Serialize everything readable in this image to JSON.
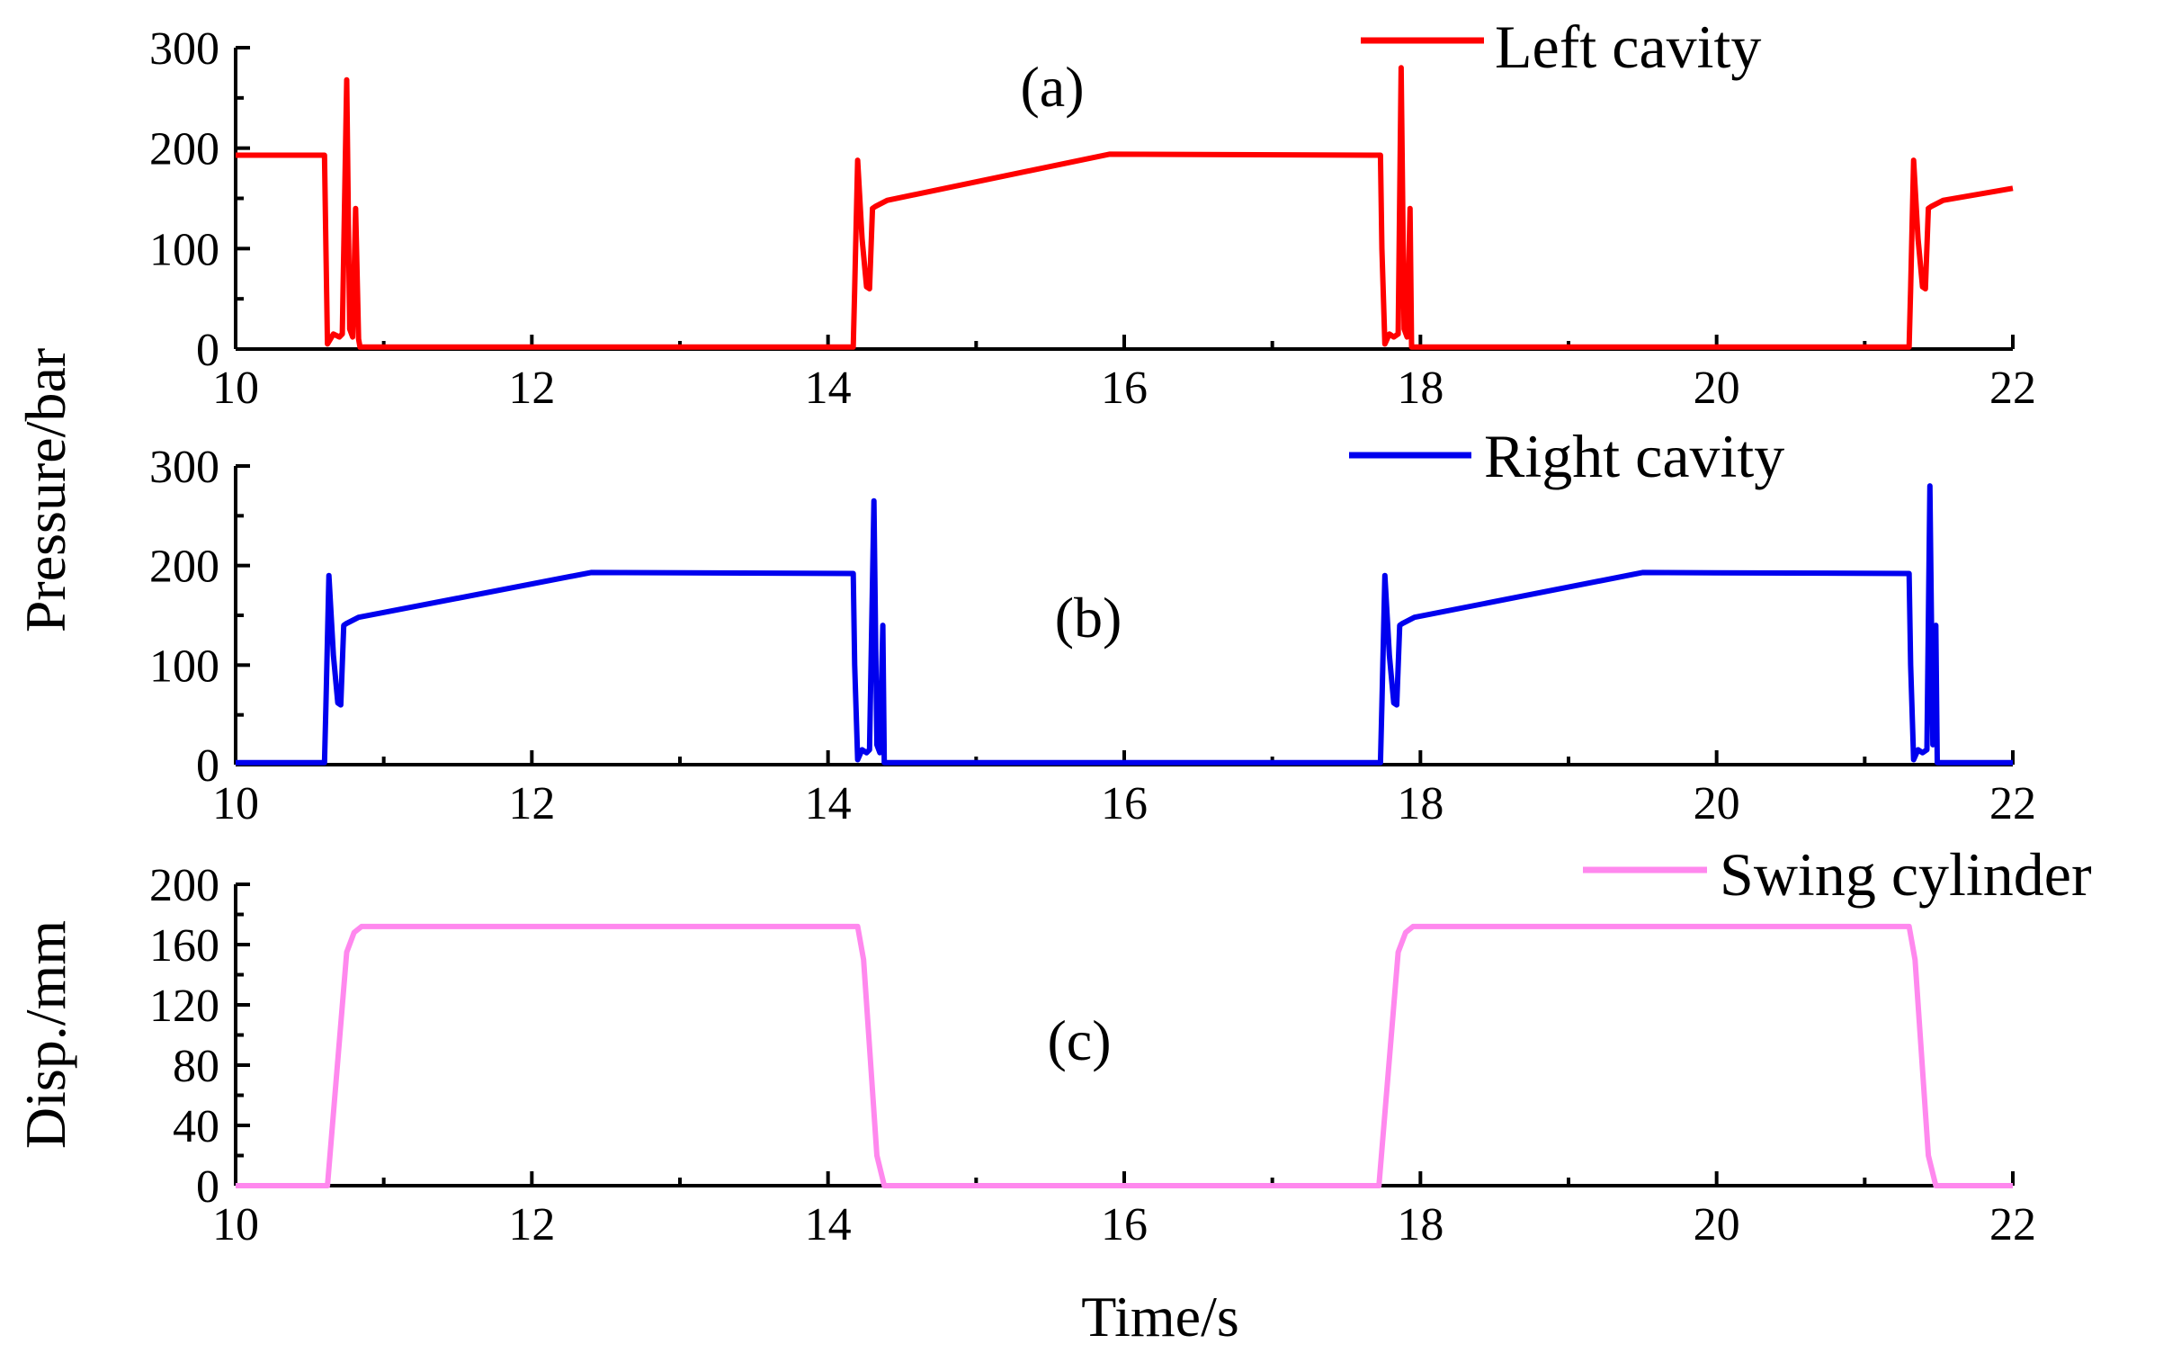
{
  "chart_data": {
    "type": "line",
    "shared_ylabel": "Pressure/bar",
    "xlabel": "Time/s",
    "panels": [
      {
        "id": "a",
        "panel_label": "(a)",
        "legend": "Left cavity",
        "color": "#ff0000",
        "xlim": [
          10,
          22
        ],
        "ylim": [
          0,
          300
        ],
        "xticks": [
          10,
          12,
          14,
          16,
          18,
          20,
          22
        ],
        "xtick_labels": [
          "10",
          "12",
          "14",
          "16",
          "18",
          "20",
          "22"
        ],
        "yticks": [
          0,
          100,
          200,
          300
        ],
        "ytick_labels": [
          "0",
          "100",
          "200",
          "300"
        ],
        "x": [
          10,
          10.6,
          10.61,
          10.62,
          10.66,
          10.7,
          10.72,
          10.75,
          10.77,
          10.79,
          10.81,
          10.83,
          10.84,
          11.5,
          14.17,
          14.18,
          14.2,
          14.23,
          14.26,
          14.28,
          14.3,
          14.32,
          14.4,
          15.9,
          17.73,
          17.74,
          17.76,
          17.79,
          17.82,
          17.85,
          17.87,
          17.89,
          17.91,
          17.93,
          17.94,
          19,
          21.3,
          21.31,
          21.33,
          21.36,
          21.39,
          21.41,
          21.43,
          21.45,
          21.53,
          22
        ],
        "y": [
          193,
          193,
          100,
          5,
          15,
          12,
          15,
          268,
          20,
          12,
          140,
          10,
          2,
          2,
          2,
          60,
          188,
          110,
          62,
          60,
          140,
          142,
          148,
          194,
          193,
          100,
          5,
          15,
          12,
          15,
          280,
          20,
          12,
          140,
          2,
          2,
          2,
          60,
          188,
          110,
          62,
          60,
          140,
          142,
          148,
          160
        ]
      },
      {
        "id": "b",
        "panel_label": "(b)",
        "legend": "Right cavity",
        "color": "#0000ee",
        "xlim": [
          10,
          22
        ],
        "ylim": [
          0,
          300
        ],
        "xticks": [
          10,
          12,
          14,
          16,
          18,
          20,
          22
        ],
        "xtick_labels": [
          "10",
          "12",
          "14",
          "16",
          "18",
          "20",
          "22"
        ],
        "yticks": [
          0,
          100,
          200,
          300
        ],
        "ytick_labels": [
          "0",
          "100",
          "200",
          "300"
        ],
        "x": [
          10,
          10.6,
          10.61,
          10.63,
          10.66,
          10.69,
          10.71,
          10.73,
          10.75,
          10.83,
          12.4,
          14.17,
          14.18,
          14.2,
          14.23,
          14.26,
          14.28,
          14.31,
          14.33,
          14.35,
          14.37,
          14.38,
          17.73,
          17.74,
          17.76,
          17.79,
          17.82,
          17.84,
          17.86,
          17.88,
          17.96,
          19.5,
          21.3,
          21.31,
          21.33,
          21.36,
          21.39,
          21.42,
          21.44,
          21.46,
          21.48,
          21.49,
          22
        ],
        "y": [
          2,
          2,
          60,
          190,
          110,
          62,
          60,
          140,
          142,
          148,
          193,
          192,
          100,
          5,
          15,
          12,
          15,
          265,
          20,
          12,
          140,
          2,
          2,
          60,
          190,
          110,
          62,
          60,
          140,
          142,
          148,
          193,
          192,
          100,
          5,
          15,
          12,
          15,
          280,
          20,
          140,
          2,
          2
        ]
      },
      {
        "id": "c",
        "panel_label": "(c)",
        "legend": "Swing cylinder",
        "color": "#ff88ee",
        "ylabel": "Disp./mm",
        "xlim": [
          10,
          22
        ],
        "ylim": [
          0,
          200
        ],
        "xticks": [
          10,
          12,
          14,
          16,
          18,
          20,
          22
        ],
        "xtick_labels": [
          "10",
          "12",
          "14",
          "16",
          "18",
          "20",
          "22"
        ],
        "yticks": [
          0,
          40,
          80,
          120,
          160,
          200
        ],
        "ytick_labels": [
          "0",
          "40",
          "80",
          "120",
          "160",
          "200"
        ],
        "x": [
          10,
          10.62,
          10.75,
          10.8,
          10.85,
          14.2,
          14.24,
          14.33,
          14.38,
          17.72,
          17.85,
          17.9,
          17.95,
          21.3,
          21.34,
          21.43,
          21.48,
          22
        ],
        "y": [
          0,
          0,
          155,
          168,
          172,
          172,
          150,
          20,
          0,
          0,
          155,
          168,
          172,
          172,
          150,
          20,
          0,
          0
        ]
      }
    ]
  }
}
